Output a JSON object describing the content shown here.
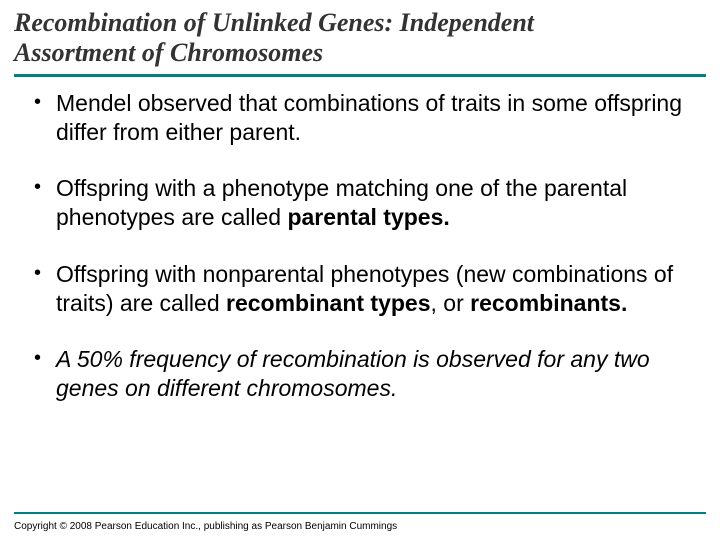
{
  "colors": {
    "accent": "#008080",
    "background": "#ffffff",
    "title_text": "#333333",
    "body_text": "#000000"
  },
  "typography": {
    "title_font": "Times New Roman",
    "title_fontsize_pt": 20,
    "title_weight": "bold",
    "title_style": "italic",
    "body_font": "Arial",
    "body_fontsize_pt": 17
  },
  "title": {
    "line1": "Recombination of Unlinked Genes: Independent",
    "line2": "Assortment of Chromosomes"
  },
  "bullets": [
    {
      "segments": [
        {
          "text": "Mendel observed that combinations of traits in some offspring differ from either parent.",
          "bold": false,
          "italic": false
        }
      ]
    },
    {
      "segments": [
        {
          "text": "Offspring with a phenotype matching one of the parental phenotypes are called ",
          "bold": false,
          "italic": false
        },
        {
          "text": "parental types.",
          "bold": true,
          "italic": false
        }
      ]
    },
    {
      "segments": [
        {
          "text": "Offspring with nonparental phenotypes (new combinations of traits) are called ",
          "bold": false,
          "italic": false
        },
        {
          "text": "recombinant types",
          "bold": true,
          "italic": false
        },
        {
          "text": ", or ",
          "bold": false,
          "italic": false
        },
        {
          "text": "recombinants.",
          "bold": true,
          "italic": false
        }
      ]
    },
    {
      "segments": [
        {
          "text": "A 50% frequency of recombination is observed for any two genes on different chromosomes.",
          "bold": false,
          "italic": true
        }
      ]
    }
  ],
  "footer": "Copyright © 2008 Pearson Education Inc., publishing as Pearson Benjamin Cummings"
}
